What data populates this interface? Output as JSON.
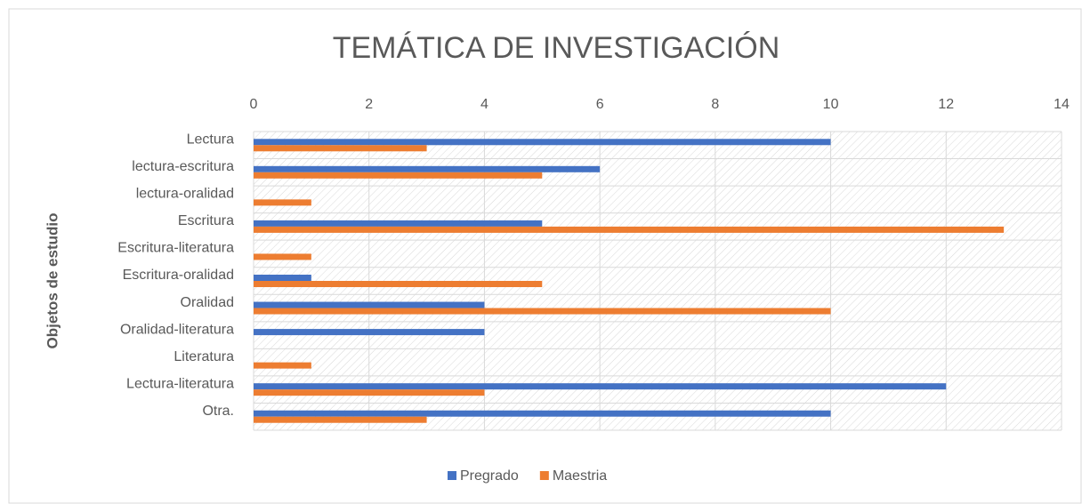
{
  "chart_data": {
    "type": "barh",
    "title": "TEMÁTICA DE INVESTIGACIÓN",
    "ylabel": "Objetos de estudio",
    "categories": [
      "Lectura",
      "lectura-escritura",
      "lectura-oralidad",
      "Escritura",
      "Escritura-literatura",
      "Escritura-oralidad",
      "Oralidad",
      "Oralidad-literatura",
      "Literatura",
      "Lectura-literatura",
      "Otra."
    ],
    "series": [
      {
        "name": "Pregrado",
        "color": "#4472c4",
        "values": [
          10,
          6,
          0,
          5,
          0,
          1,
          4,
          4,
          0,
          12,
          10
        ]
      },
      {
        "name": "Maestria",
        "color": "#ed7d31",
        "values": [
          3,
          5,
          1,
          13,
          1,
          5,
          10,
          0,
          1,
          4,
          3
        ]
      }
    ],
    "xlim": [
      0,
      14
    ],
    "xticks": [
      0,
      2,
      4,
      6,
      8,
      10,
      12,
      14
    ],
    "grid": true,
    "legend": "bottom"
  }
}
